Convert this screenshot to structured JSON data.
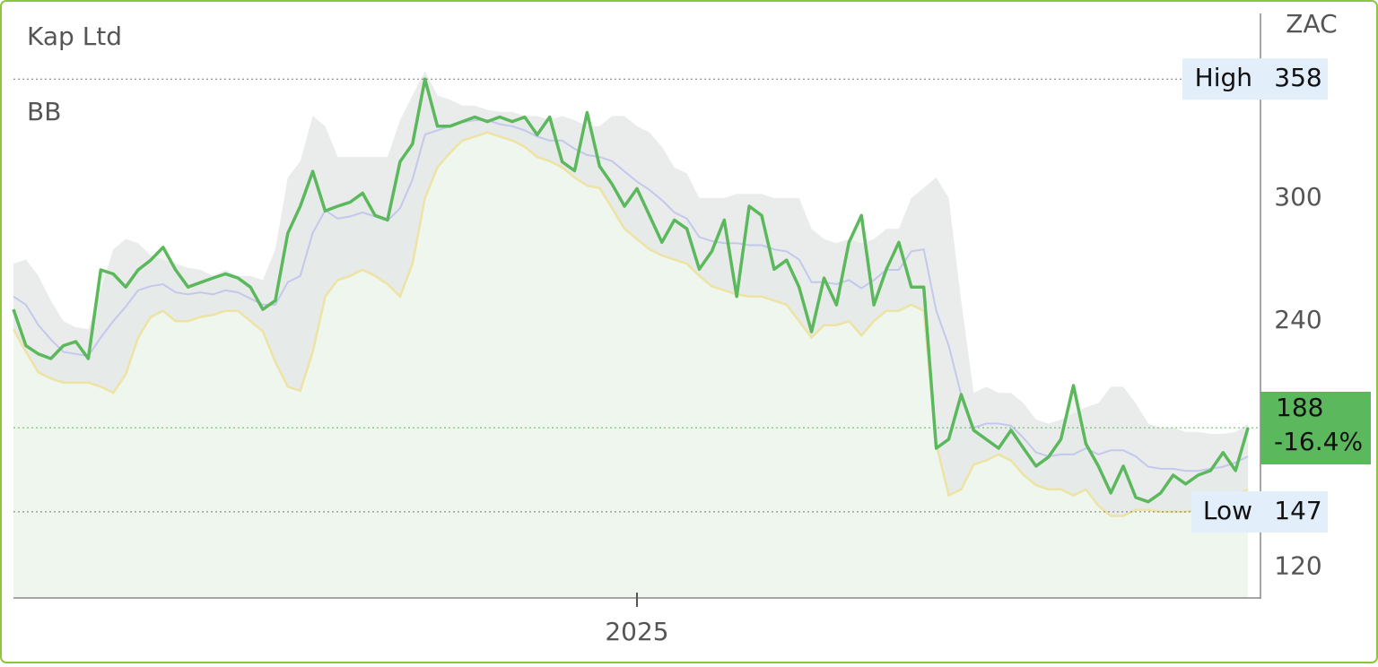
{
  "chart_data": {
    "type": "line",
    "title": "Kap Ltd",
    "indicator": "BB",
    "unit": "ZAC",
    "x": [
      2024.0,
      2024.02,
      2024.04,
      2024.06,
      2024.08,
      2024.1,
      2024.12,
      2024.14,
      2024.16,
      2024.18,
      2024.2,
      2024.22,
      2024.24,
      2024.26,
      2024.28,
      2024.3,
      2024.32,
      2024.34,
      2024.36,
      2024.38,
      2024.4,
      2024.42,
      2024.44,
      2024.46,
      2024.48,
      2024.5,
      2024.52,
      2024.54,
      2024.56,
      2024.58,
      2024.6,
      2024.62,
      2024.64,
      2024.66,
      2024.68,
      2024.7,
      2024.72,
      2024.74,
      2024.76,
      2024.78,
      2024.8,
      2024.82,
      2024.84,
      2024.86,
      2024.88,
      2024.9,
      2024.92,
      2024.94,
      2024.96,
      2024.98,
      2025.0,
      2025.02,
      2025.04,
      2025.06,
      2025.08,
      2025.1,
      2025.12,
      2025.14,
      2025.16,
      2025.18,
      2025.2,
      2025.22,
      2025.24,
      2025.26,
      2025.28,
      2025.3,
      2025.32,
      2025.34,
      2025.36,
      2025.38,
      2025.4,
      2025.42,
      2025.44,
      2025.46,
      2025.48,
      2025.5,
      2025.52,
      2025.54,
      2025.56,
      2025.58,
      2025.6,
      2025.62,
      2025.64,
      2025.66,
      2025.68,
      2025.7,
      2025.72,
      2025.74,
      2025.76,
      2025.78,
      2025.8,
      2025.82,
      2025.84,
      2025.86,
      2025.88,
      2025.9,
      2025.92,
      2025.94,
      2025.96,
      2025.98
    ],
    "series": [
      {
        "color": "#5cb85c",
        "values": [
          245.7,
          228,
          224,
          221.7,
          228,
          230,
          221.7,
          265,
          263,
          256.6,
          265,
          269.7,
          276,
          265,
          256.6,
          258.8,
          261,
          263,
          261,
          256.6,
          245.7,
          250,
          282.8,
          296,
          313,
          293.7,
          296,
          298,
          302.4,
          291.5,
          289.3,
          317.7,
          326.4,
          358,
          335,
          335,
          337.3,
          339.5,
          337.3,
          339.5,
          337.3,
          339.5,
          330.8,
          339.5,
          317.7,
          313.3,
          341.7,
          315.5,
          306.8,
          296,
          304.6,
          291.5,
          278.4,
          289.3,
          285,
          265.3,
          274,
          289.3,
          252,
          296,
          291.5,
          265.3,
          269.7,
          256.6,
          234.8,
          261,
          247.9,
          278.4,
          291.5,
          247.9,
          265.3,
          278.4,
          256.6,
          256.6,
          178,
          182.4,
          204.2,
          186.8,
          182.4,
          178,
          186.8,
          178,
          169.3,
          173.7,
          182.4,
          208.6,
          180.2,
          169.3,
          156.2,
          169.3,
          154,
          151.9,
          156.2,
          164.9,
          160.6,
          164.9,
          167.1,
          175.9,
          167.1,
          188
        ]
      }
    ],
    "bands": {
      "upper": {
        "color": "#e3e6e5",
        "values": [
          268,
          270,
          262,
          250,
          240,
          237,
          236,
          255,
          275,
          280,
          278,
          272,
          270,
          268,
          266,
          265,
          262,
          265,
          262,
          262,
          260,
          275,
          310,
          318,
          340,
          335,
          320,
          320,
          320,
          320,
          320,
          338,
          350,
          362,
          350,
          348,
          345,
          345,
          343,
          342,
          342,
          340,
          340,
          338,
          340,
          338,
          335,
          335,
          340,
          340,
          335,
          332,
          325,
          315,
          312,
          300,
          300,
          300,
          302,
          302,
          302,
          300,
          300,
          300,
          285,
          280,
          278,
          280,
          278,
          280,
          285,
          285,
          300,
          305,
          310,
          300,
          250,
          205,
          208,
          205,
          205,
          200,
          192,
          190,
          192,
          195,
          198,
          200,
          208,
          208,
          200,
          190,
          188,
          188,
          186,
          186,
          185,
          185,
          186,
          190
        ]
      },
      "middle": {
        "color": "#c3c8ec",
        "values": [
          252,
          248,
          238,
          231,
          225,
          224,
          223,
          232,
          240,
          247,
          255,
          257,
          258,
          254,
          253,
          254,
          253,
          255,
          254,
          251,
          248,
          248,
          259,
          262,
          283,
          294,
          290,
          291,
          293,
          291,
          289,
          295,
          309,
          331,
          333,
          335,
          337,
          338,
          338,
          336,
          335,
          333,
          330,
          328,
          328,
          324,
          321,
          320,
          318,
          313,
          308,
          304,
          299,
          293,
          290,
          281,
          279,
          278,
          278,
          277,
          277,
          275,
          274,
          270,
          259,
          259,
          258,
          260,
          256,
          260,
          265,
          265,
          274,
          275,
          245,
          228,
          204,
          188,
          190,
          190,
          189,
          183,
          176,
          174,
          175,
          175,
          178,
          175,
          177,
          177,
          174,
          169,
          168,
          168,
          167,
          167,
          168,
          169,
          171,
          174
        ]
      },
      "lower": {
        "color": "#ede3a4",
        "values": [
          236,
          225,
          215,
          212,
          210,
          210,
          210,
          208,
          205,
          214,
          232,
          242,
          245,
          240,
          240,
          242,
          243,
          245,
          245,
          240,
          235,
          220,
          208,
          206,
          225,
          252,
          260,
          262,
          265,
          262,
          258,
          252,
          268,
          300,
          315,
          322,
          328,
          330,
          332,
          330,
          328,
          325,
          320,
          318,
          315,
          310,
          306,
          305,
          295,
          285,
          280,
          275,
          272,
          270,
          268,
          262,
          257,
          255,
          253,
          252,
          252,
          250,
          248,
          240,
          232,
          238,
          238,
          240,
          233,
          240,
          245,
          245,
          248,
          245,
          180,
          155,
          158,
          170,
          172,
          175,
          172,
          165,
          160,
          158,
          158,
          155,
          158,
          150,
          145,
          145,
          148,
          148,
          147,
          147,
          147,
          148,
          150,
          152,
          155,
          158
        ]
      }
    },
    "area_color": "#eef6ee",
    "high": {
      "label": "High",
      "value": 358
    },
    "low": {
      "label": "Low",
      "value": 147
    },
    "last": {
      "value": 188,
      "change": {
        "value": -16.4,
        "label": "-16.4%"
      },
      "color": "#5cb85c"
    },
    "xlim": [
      2024,
      2026
    ],
    "xticks": [
      2025
    ],
    "ylim": [
      105,
      390
    ],
    "yticks": [
      120,
      240,
      300
    ]
  }
}
